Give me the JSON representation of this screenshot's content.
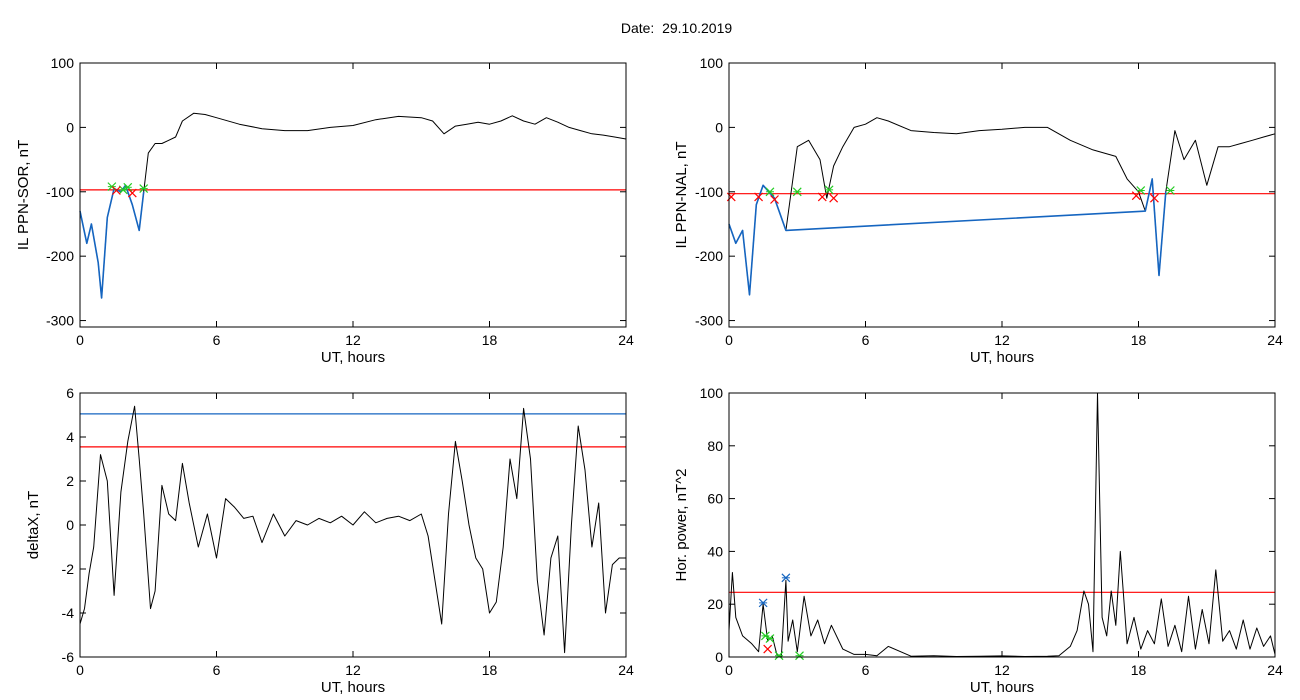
{
  "header": {
    "date_label": "Date:",
    "date_value": "29.10.2019"
  },
  "colors": {
    "black": "#000000",
    "red": "#ff0000",
    "blue": "#1565c0",
    "green": "#22cc22"
  },
  "chart_data": [
    {
      "type": "line",
      "xlabel": "UT, hours",
      "ylabel": "IL PPN-SOR, nT",
      "xlim": [
        0,
        24
      ],
      "ylim": [
        -310,
        100
      ],
      "xticks": [
        0,
        6,
        12,
        18,
        24
      ],
      "yticks": [
        -300,
        -200,
        -100,
        0,
        100
      ],
      "hlines": [
        {
          "y": -97,
          "color": "red"
        }
      ],
      "series": [
        {
          "color": "black",
          "x": [
            0,
            0.3,
            0.5,
            0.8,
            0.95,
            1.2,
            1.5,
            1.8,
            2.0,
            2.3,
            2.6,
            2.8,
            3.0,
            3.3,
            3.6,
            3.9,
            4.2,
            4.5,
            5.0,
            5.5,
            6.0,
            7.0,
            8.0,
            9.0,
            10.0,
            11.0,
            12.0,
            13.0,
            14.0,
            15.0,
            15.5,
            16.0,
            16.5,
            17.0,
            17.5,
            18.0,
            18.5,
            19.0,
            19.5,
            20.0,
            20.5,
            21.0,
            21.5,
            22.0,
            22.5,
            23.0,
            23.5,
            24.0
          ],
          "y": [
            -130,
            -180,
            -150,
            -210,
            -265,
            -140,
            -95,
            -100,
            -90,
            -120,
            -160,
            -100,
            -40,
            -25,
            -25,
            -20,
            -15,
            10,
            22,
            20,
            15,
            5,
            -2,
            -5,
            -5,
            0,
            3,
            12,
            17,
            15,
            10,
            -10,
            2,
            5,
            8,
            5,
            10,
            18,
            10,
            5,
            15,
            8,
            0,
            -5,
            -10,
            -12,
            -15,
            -18
          ]
        },
        {
          "color": "blue",
          "x": [
            0,
            0.3,
            0.5,
            0.8,
            0.95,
            1.2,
            1.5,
            1.8,
            2.0,
            2.3,
            2.6,
            2.8
          ],
          "y": [
            -130,
            -180,
            -150,
            -210,
            -265,
            -140,
            -95,
            -100,
            -90,
            -120,
            -160,
            -100
          ]
        }
      ],
      "markers": [
        {
          "color": "green",
          "x": [
            1.4,
            1.9,
            2.1,
            2.8
          ],
          "y": [
            -92,
            -97,
            -93,
            -95
          ]
        },
        {
          "color": "red",
          "x": [
            1.6,
            2.3
          ],
          "y": [
            -98,
            -102
          ]
        }
      ]
    },
    {
      "type": "line",
      "xlabel": "UT, hours",
      "ylabel": "IL PPN-NAL, nT",
      "xlim": [
        0,
        24
      ],
      "ylim": [
        -310,
        100
      ],
      "xticks": [
        0,
        6,
        12,
        18,
        24
      ],
      "yticks": [
        -300,
        -200,
        -100,
        0,
        100
      ],
      "hlines": [
        {
          "y": -103,
          "color": "red"
        }
      ],
      "series": [
        {
          "color": "black",
          "x": [
            0,
            0.3,
            0.6,
            0.9,
            1.2,
            1.5,
            2.0,
            2.5,
            3.0,
            3.5,
            4.0,
            4.3,
            4.6,
            5.0,
            5.5,
            6.0,
            6.5,
            7.0,
            8.0,
            9.0,
            10.0,
            11.0,
            12.0,
            13.0,
            14.0,
            15.0,
            16.0,
            17.0,
            17.5,
            18.0,
            18.3,
            18.6,
            18.9,
            19.2,
            19.6,
            20.0,
            20.5,
            21.0,
            21.5,
            22.0,
            22.5,
            23.0,
            23.5,
            24.0
          ],
          "y": [
            -150,
            -180,
            -160,
            -260,
            -120,
            -90,
            -110,
            -160,
            -30,
            -20,
            -50,
            -110,
            -60,
            -30,
            0,
            5,
            15,
            10,
            -5,
            -8,
            -10,
            -5,
            -3,
            0,
            0,
            -20,
            -35,
            -45,
            -80,
            -100,
            -130,
            -80,
            -230,
            -100,
            -5,
            -50,
            -20,
            -90,
            -30,
            -30,
            -25,
            -20,
            -15,
            -10
          ]
        },
        {
          "color": "blue",
          "x": [
            0,
            0.3,
            0.6,
            0.9,
            1.2,
            1.5,
            2.0,
            2.5,
            18.3,
            18.6,
            18.9,
            19.2
          ],
          "y": [
            -150,
            -180,
            -160,
            -260,
            -120,
            -90,
            -110,
            -160,
            -130,
            -80,
            -230,
            -100
          ]
        }
      ],
      "markers": [
        {
          "color": "green",
          "x": [
            1.8,
            3.0,
            4.4,
            18.1,
            19.4
          ],
          "y": [
            -100,
            -100,
            -97,
            -98,
            -98
          ]
        },
        {
          "color": "red",
          "x": [
            0.1,
            1.3,
            2.0,
            4.1,
            4.6,
            17.9,
            18.7
          ],
          "y": [
            -108,
            -108,
            -112,
            -108,
            -110,
            -106,
            -110
          ]
        }
      ]
    },
    {
      "type": "line",
      "xlabel": "UT, hours",
      "ylabel": "deltaX, nT",
      "xlim": [
        0,
        24
      ],
      "ylim": [
        -6,
        6
      ],
      "xticks": [
        0,
        6,
        12,
        18,
        24
      ],
      "yticks": [
        -6,
        -4,
        -2,
        0,
        2,
        4,
        6
      ],
      "hlines": [
        {
          "y": 5.05,
          "color": "blue"
        },
        {
          "y": 3.55,
          "color": "red"
        }
      ],
      "series": [
        {
          "color": "black",
          "x": [
            0,
            0.2,
            0.4,
            0.6,
            0.9,
            1.2,
            1.5,
            1.8,
            2.1,
            2.4,
            2.6,
            2.8,
            3.1,
            3.3,
            3.6,
            3.9,
            4.2,
            4.5,
            4.8,
            5.2,
            5.6,
            6.0,
            6.4,
            6.8,
            7.2,
            7.6,
            8.0,
            8.5,
            9.0,
            9.5,
            10.0,
            10.5,
            11.0,
            11.5,
            12.0,
            12.5,
            13.0,
            13.5,
            14.0,
            14.5,
            15.0,
            15.3,
            15.6,
            15.9,
            16.2,
            16.5,
            16.8,
            17.1,
            17.4,
            17.7,
            18.0,
            18.3,
            18.6,
            18.9,
            19.2,
            19.5,
            19.8,
            20.1,
            20.4,
            20.7,
            21.0,
            21.3,
            21.6,
            21.9,
            22.2,
            22.5,
            22.8,
            23.1,
            23.4,
            23.7,
            24.0
          ],
          "y": [
            -4.5,
            -3.8,
            -2.2,
            -1.0,
            3.2,
            2.0,
            -3.2,
            1.5,
            3.8,
            5.4,
            3.0,
            0.5,
            -3.8,
            -3.0,
            1.8,
            0.5,
            0.2,
            2.8,
            1.0,
            -1.0,
            0.5,
            -1.5,
            1.2,
            0.8,
            0.3,
            0.4,
            -0.8,
            0.5,
            -0.5,
            0.2,
            0.0,
            0.3,
            0.1,
            0.4,
            0.0,
            0.6,
            0.1,
            0.3,
            0.4,
            0.2,
            0.5,
            -0.5,
            -2.5,
            -4.5,
            0.5,
            3.8,
            2.0,
            0.0,
            -1.5,
            -2.0,
            -4.0,
            -3.5,
            -1.0,
            3.0,
            1.2,
            5.3,
            3.0,
            -2.5,
            -5.0,
            -1.5,
            -0.5,
            -5.8,
            0.0,
            4.5,
            2.5,
            -1.0,
            1.0,
            -4.0,
            -1.8,
            -1.5,
            -1.5
          ]
        }
      ],
      "markers": []
    },
    {
      "type": "line",
      "xlabel": "UT, hours",
      "ylabel": "Hor. power, nT^2",
      "xlim": [
        0,
        24
      ],
      "ylim": [
        0,
        100
      ],
      "xticks": [
        0,
        6,
        12,
        18,
        24
      ],
      "yticks": [
        0,
        20,
        40,
        60,
        80,
        100
      ],
      "hlines": [
        {
          "y": 24.5,
          "color": "red"
        }
      ],
      "series": [
        {
          "color": "black",
          "x": [
            0,
            0.15,
            0.3,
            0.6,
            1.0,
            1.3,
            1.5,
            1.7,
            1.9,
            2.1,
            2.3,
            2.5,
            2.6,
            2.8,
            3.0,
            3.3,
            3.6,
            3.9,
            4.2,
            4.5,
            5.0,
            5.5,
            6.0,
            6.5,
            7.0,
            8.0,
            9.0,
            10.0,
            11.0,
            12.0,
            13.0,
            14.0,
            14.5,
            15.0,
            15.3,
            15.6,
            15.8,
            16.0,
            16.2,
            16.4,
            16.6,
            16.8,
            17.0,
            17.2,
            17.5,
            17.8,
            18.1,
            18.4,
            18.7,
            19.0,
            19.3,
            19.6,
            19.9,
            20.2,
            20.5,
            20.8,
            21.1,
            21.4,
            21.7,
            22.0,
            22.3,
            22.6,
            22.9,
            23.2,
            23.5,
            23.8,
            24.0
          ],
          "y": [
            10,
            32,
            15,
            8,
            5,
            2,
            20,
            6,
            8,
            1,
            0,
            29,
            6,
            14,
            2,
            23,
            8,
            14,
            5,
            12,
            3,
            1,
            1,
            0.5,
            4,
            0.3,
            0.5,
            0.2,
            0.3,
            0.4,
            0.2,
            0.3,
            0.5,
            4,
            10,
            25,
            20,
            2,
            100,
            15,
            8,
            25,
            12,
            40,
            5,
            15,
            3,
            10,
            5,
            22,
            4,
            12,
            2,
            23,
            3,
            18,
            5,
            33,
            6,
            10,
            3,
            14,
            3,
            11,
            4,
            8,
            1
          ]
        }
      ],
      "markers": [
        {
          "color": "blue",
          "x": [
            1.5,
            2.5
          ],
          "y": [
            20.5,
            30
          ]
        },
        {
          "color": "green",
          "x": [
            1.6,
            1.8,
            2.2,
            3.1
          ],
          "y": [
            8,
            7,
            0.5,
            0.5
          ]
        },
        {
          "color": "red",
          "x": [
            1.7
          ],
          "y": [
            3
          ]
        }
      ]
    }
  ]
}
